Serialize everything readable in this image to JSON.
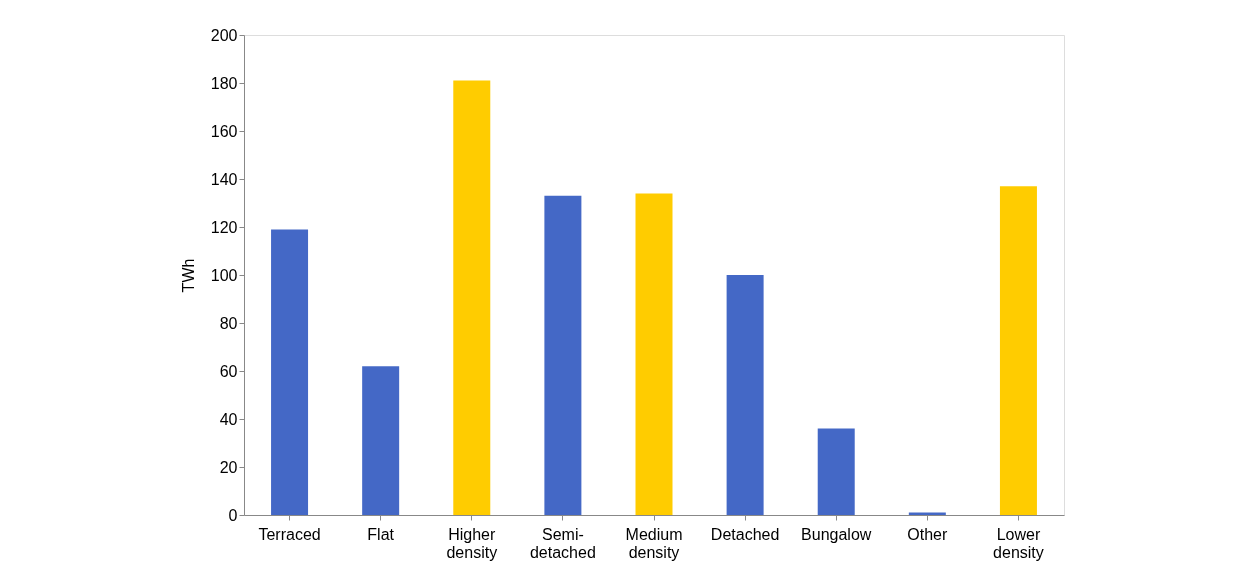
{
  "chart_data": {
    "type": "bar",
    "ylabel": "TWh",
    "categories": [
      "Terraced",
      "Flat",
      "Higher density",
      "Semi-detached",
      "Medium density",
      "Detached",
      "Bungalow",
      "Other",
      "Lower density"
    ],
    "values": [
      119,
      62,
      181,
      133,
      134,
      100,
      36,
      1,
      137
    ],
    "colors": [
      "#4468c6",
      "#4468c6",
      "#ffcc00",
      "#4468c6",
      "#ffcc00",
      "#4468c6",
      "#4468c6",
      "#4468c6",
      "#ffcc00"
    ],
    "ylim": [
      0,
      200
    ],
    "yticks": [
      0,
      20,
      40,
      60,
      80,
      100,
      120,
      140,
      160,
      180,
      200
    ],
    "grid": false,
    "legend": false
  }
}
